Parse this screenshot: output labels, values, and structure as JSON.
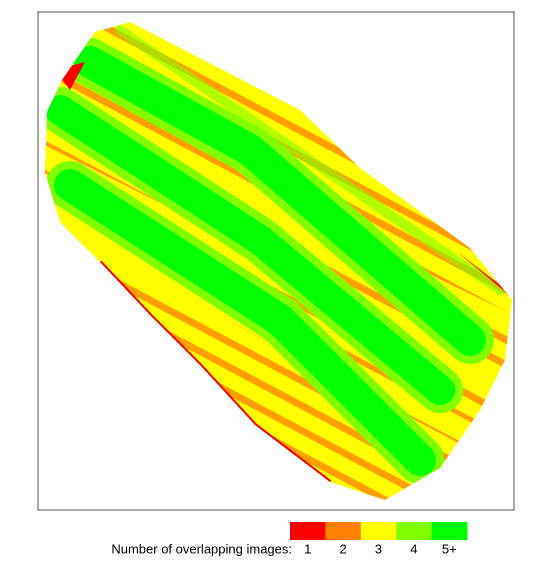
{
  "legend": {
    "label": "Number of overlapping images:",
    "items": [
      {
        "label": "1",
        "color": "#ff0000"
      },
      {
        "label": "2",
        "color": "#ff8000"
      },
      {
        "label": "3",
        "color": "#ffff00"
      },
      {
        "label": "4",
        "color": "#80ff00"
      },
      {
        "label": "5+",
        "color": "#00ff00"
      }
    ]
  }
}
